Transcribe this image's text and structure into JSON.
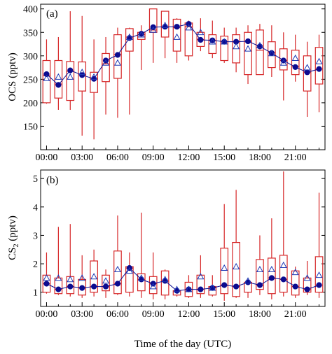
{
  "figure": {
    "xlabel": "Time of the day (UTC)"
  },
  "chart_data": [
    {
      "type": "box",
      "panel_label": "(a)",
      "ylabel": "OCS (pptv)",
      "xlim": [
        -0.5,
        23.5
      ],
      "ylim": [
        100,
        410
      ],
      "yticks": [
        150,
        200,
        250,
        300,
        350,
        400
      ],
      "xtick_values": [
        0,
        3,
        6,
        9,
        12,
        15,
        18,
        21
      ],
      "xtick_labels": [
        "00:00",
        "03:00",
        "06:00",
        "09:00",
        "12:00",
        "15:00",
        "18:00",
        "21:00"
      ],
      "grid": false,
      "box_color": "#d62728",
      "median_color": "#0b0b8f",
      "mean_color": "#1f3ab5",
      "hours": [
        0,
        1,
        2,
        3,
        4,
        5,
        6,
        7,
        8,
        9,
        10,
        11,
        12,
        13,
        14,
        15,
        16,
        17,
        18,
        19,
        20,
        21,
        22,
        23
      ],
      "whisker_low": [
        198,
        185,
        185,
        130,
        122,
        175,
        168,
        175,
        270,
        285,
        295,
        285,
        290,
        310,
        295,
        285,
        265,
        240,
        260,
        255,
        205,
        245,
        170,
        180
      ],
      "q1": [
        200,
        210,
        205,
        225,
        222,
        245,
        252,
        310,
        335,
        350,
        340,
        310,
        300,
        320,
        305,
        290,
        285,
        260,
        260,
        275,
        270,
        260,
        225,
        240
      ],
      "median": [
        258,
        240,
        267,
        260,
        252,
        283,
        303,
        340,
        345,
        355,
        362,
        360,
        362,
        335,
        333,
        330,
        330,
        331,
        312,
        307,
        290,
        278,
        265,
        272
      ],
      "q3": [
        290,
        290,
        288,
        287,
        265,
        305,
        345,
        358,
        350,
        400,
        395,
        378,
        370,
        350,
        345,
        342,
        345,
        350,
        355,
        330,
        315,
        312,
        300,
        318
      ],
      "whisker_high": [
        335,
        340,
        395,
        385,
        335,
        340,
        360,
        360,
        365,
        400,
        395,
        380,
        375,
        380,
        375,
        360,
        360,
        365,
        368,
        365,
        350,
        345,
        330,
        345
      ],
      "mean": [
        261,
        238,
        269,
        259,
        251,
        290,
        302,
        338,
        347,
        361,
        362,
        362,
        368,
        334,
        333,
        330,
        330,
        331,
        320,
        306,
        290,
        276,
        265,
        272
      ],
      "median_marker": [
        252,
        255,
        255,
        265,
        255,
        285,
        285,
        340,
        345,
        355,
        365,
        340,
        360,
        350,
        330,
        330,
        320,
        315,
        322,
        305,
        285,
        295,
        275,
        288
      ]
    },
    {
      "type": "box",
      "panel_label": "(b)",
      "ylabel": "CS2 (pptv)",
      "ylabel_main": "CS",
      "ylabel_sub": "2",
      "ylabel_unit": " (pptv)",
      "xlim": [
        -0.5,
        23.5
      ],
      "ylim": [
        0.5,
        5.3
      ],
      "yticks": [
        1,
        2,
        3,
        4,
        5
      ],
      "xtick_values": [
        0,
        3,
        6,
        9,
        12,
        15,
        18,
        21
      ],
      "xtick_labels": [
        "00:00",
        "03:00",
        "06:00",
        "09:00",
        "12:00",
        "15:00",
        "18:00",
        "21:00"
      ],
      "grid": false,
      "box_color": "#d62728",
      "median_color": "#0b0b8f",
      "mean_color": "#1f3ab5",
      "hours": [
        0,
        1,
        2,
        3,
        4,
        5,
        6,
        7,
        8,
        9,
        10,
        11,
        12,
        13,
        14,
        15,
        16,
        17,
        18,
        19,
        20,
        21,
        22,
        23
      ],
      "whisker_low": [
        0.95,
        0.9,
        0.85,
        0.8,
        0.85,
        0.8,
        0.9,
        0.85,
        0.8,
        0.75,
        0.75,
        0.85,
        0.8,
        0.8,
        0.85,
        0.7,
        0.8,
        0.8,
        0.9,
        0.75,
        0.85,
        0.8,
        0.9,
        0.8
      ],
      "q1": [
        1.0,
        0.95,
        0.95,
        0.9,
        1.0,
        1.05,
        0.95,
        1.0,
        1.05,
        0.95,
        0.9,
        0.9,
        0.85,
        0.95,
        0.9,
        0.95,
        0.85,
        1.0,
        1.1,
        0.95,
        1.0,
        0.9,
        1.0,
        1.0
      ],
      "median": [
        1.3,
        1.1,
        1.2,
        1.15,
        1.2,
        1.2,
        1.3,
        1.85,
        1.45,
        1.3,
        1.4,
        1.05,
        1.1,
        1.1,
        1.15,
        1.25,
        1.2,
        1.35,
        1.25,
        1.5,
        1.45,
        1.2,
        1.1,
        1.25
      ],
      "q3": [
        1.6,
        1.5,
        1.55,
        1.45,
        2.1,
        1.6,
        2.45,
        1.9,
        1.65,
        1.55,
        1.75,
        1.05,
        1.35,
        1.6,
        1.2,
        2.55,
        2.75,
        1.35,
        2.15,
        2.2,
        2.3,
        1.75,
        1.5,
        2.25
      ],
      "whisker_high": [
        2.4,
        3.3,
        3.4,
        2.3,
        2.5,
        1.8,
        3.7,
        2.4,
        3.8,
        2.4,
        1.8,
        1.1,
        1.6,
        2.3,
        1.6,
        4.1,
        4.6,
        1.4,
        3.0,
        3.6,
        5.25,
        1.9,
        2.1,
        4.5
      ],
      "mean": [
        1.3,
        1.1,
        1.2,
        1.15,
        1.2,
        1.2,
        1.3,
        1.85,
        1.45,
        1.3,
        1.4,
        1.05,
        1.1,
        1.1,
        1.15,
        1.25,
        1.2,
        1.35,
        1.25,
        1.5,
        1.45,
        1.2,
        1.1,
        1.25
      ],
      "median_marker": [
        1.5,
        1.5,
        1.45,
        1.5,
        1.55,
        1.4,
        1.8,
        1.75,
        1.5,
        1.2,
        1.45,
        1.1,
        1.1,
        1.55,
        1.15,
        1.85,
        1.9,
        1.4,
        1.8,
        1.8,
        1.95,
        1.7,
        1.5,
        1.6
      ]
    }
  ]
}
